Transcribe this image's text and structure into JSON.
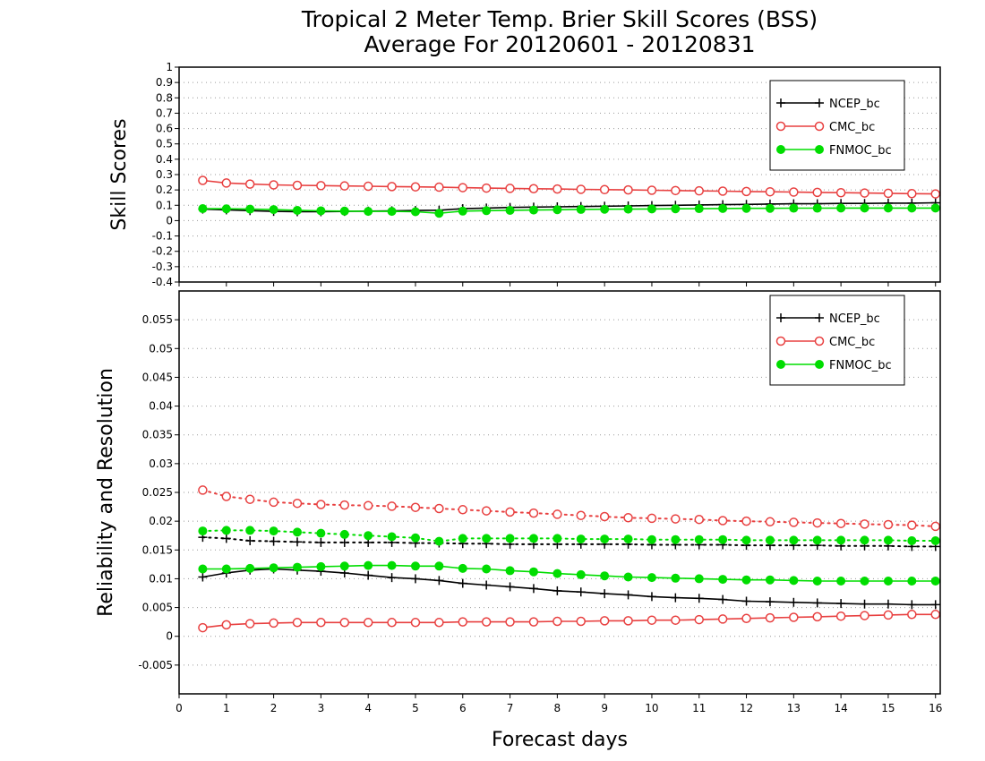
{
  "title_line1": "Tropical 2 Meter Temp. Brier Skill Scores (BSS)",
  "title_line2": "Average For 20120601 - 20120831",
  "xlabel": "Forecast days",
  "legend_labels": [
    "NCEP_bc",
    "CMC_bc",
    "FNMOC_bc"
  ],
  "colors": {
    "NCEP_bc": "#000000",
    "CMC_bc": "#e84040",
    "FNMOC_bc": "#00dd00"
  },
  "chart_data": [
    {
      "type": "line",
      "ylabel": "Skill Scores",
      "xlim": [
        0,
        16.1
      ],
      "ylim": [
        -0.4,
        1.0
      ],
      "xticks": [
        "0",
        "1",
        "2",
        "3",
        "4",
        "5",
        "6",
        "7",
        "8",
        "9",
        "10",
        "11",
        "12",
        "13",
        "14",
        "15",
        "16"
      ],
      "yticks": [
        "-0.4",
        "-0.3",
        "-0.2",
        "-0.1",
        "0",
        "0.1",
        "0.2",
        "0.3",
        "0.4",
        "0.5",
        "0.6",
        "0.7",
        "0.8",
        "0.9",
        "1"
      ],
      "grid": true,
      "legend_position": "top-right",
      "x": [
        0.5,
        1,
        1.5,
        2,
        2.5,
        3,
        3.5,
        4,
        4.5,
        5,
        5.5,
        6,
        6.5,
        7,
        7.5,
        8,
        8.5,
        9,
        9.5,
        10,
        10.5,
        11,
        11.5,
        12,
        12.5,
        13,
        13.5,
        14,
        14.5,
        15,
        15.5,
        16
      ],
      "series": [
        {
          "name": "NCEP_bc",
          "marker": "plus",
          "line": "solid",
          "values": [
            0.075,
            0.07,
            0.065,
            0.06,
            0.058,
            0.058,
            0.06,
            0.062,
            0.064,
            0.066,
            0.068,
            0.078,
            0.082,
            0.086,
            0.088,
            0.09,
            0.092,
            0.094,
            0.096,
            0.098,
            0.1,
            0.102,
            0.104,
            0.106,
            0.108,
            0.11,
            0.11,
            0.112,
            0.112,
            0.114,
            0.114,
            0.116
          ]
        },
        {
          "name": "CMC_bc",
          "marker": "open-circle",
          "line": "solid",
          "values": [
            0.262,
            0.245,
            0.238,
            0.233,
            0.23,
            0.228,
            0.226,
            0.224,
            0.222,
            0.22,
            0.218,
            0.215,
            0.212,
            0.21,
            0.208,
            0.206,
            0.204,
            0.202,
            0.2,
            0.198,
            0.196,
            0.194,
            0.192,
            0.19,
            0.188,
            0.186,
            0.184,
            0.182,
            0.18,
            0.178,
            0.176,
            0.174
          ]
        },
        {
          "name": "FNMOC_bc",
          "marker": "filled-circle",
          "line": "solid",
          "values": [
            0.078,
            0.077,
            0.075,
            0.072,
            0.067,
            0.064,
            0.062,
            0.06,
            0.06,
            0.058,
            0.048,
            0.062,
            0.065,
            0.067,
            0.069,
            0.071,
            0.073,
            0.074,
            0.075,
            0.076,
            0.077,
            0.078,
            0.079,
            0.08,
            0.08,
            0.081,
            0.081,
            0.082,
            0.082,
            0.082,
            0.082,
            0.082
          ]
        }
      ]
    },
    {
      "type": "line",
      "ylabel": "Reliability and Resolution",
      "xlim": [
        0,
        16.1
      ],
      "ylim": [
        -0.01,
        0.06
      ],
      "xticks": [
        "0",
        "1",
        "2",
        "3",
        "4",
        "5",
        "6",
        "7",
        "8",
        "9",
        "10",
        "11",
        "12",
        "13",
        "14",
        "15",
        "16"
      ],
      "yticks": [
        "-0.005",
        "0",
        "0.005",
        "0.01",
        "0.015",
        "0.02",
        "0.025",
        "0.03",
        "0.035",
        "0.04",
        "0.045",
        "0.05",
        "0.055"
      ],
      "grid": true,
      "legend_position": "top-right",
      "x": [
        0.5,
        1,
        1.5,
        2,
        2.5,
        3,
        3.5,
        4,
        4.5,
        5,
        5.5,
        6,
        6.5,
        7,
        7.5,
        8,
        8.5,
        9,
        9.5,
        10,
        10.5,
        11,
        11.5,
        12,
        12.5,
        13,
        13.5,
        14,
        14.5,
        15,
        15.5,
        16
      ],
      "series": [
        {
          "name": "NCEP_bc",
          "marker": "plus",
          "line": "dotted",
          "values": [
            0.0172,
            0.017,
            0.0166,
            0.0165,
            0.0164,
            0.0163,
            0.0163,
            0.0163,
            0.0163,
            0.0162,
            0.0162,
            0.0161,
            0.0161,
            0.016,
            0.016,
            0.016,
            0.016,
            0.016,
            0.016,
            0.0159,
            0.0159,
            0.0159,
            0.0159,
            0.0158,
            0.0158,
            0.0158,
            0.0158,
            0.0157,
            0.0157,
            0.0157,
            0.0156,
            0.0156
          ]
        },
        {
          "name": "NCEP_bc",
          "marker": "plus",
          "line": "solid",
          "values": [
            0.0103,
            0.011,
            0.0115,
            0.0117,
            0.0115,
            0.0113,
            0.011,
            0.0106,
            0.0102,
            0.01,
            0.0097,
            0.0092,
            0.0089,
            0.0086,
            0.0083,
            0.0079,
            0.0077,
            0.0074,
            0.0072,
            0.0069,
            0.0067,
            0.0066,
            0.0064,
            0.0061,
            0.006,
            0.0059,
            0.0058,
            0.0057,
            0.0056,
            0.0056,
            0.0055,
            0.0055
          ]
        },
        {
          "name": "CMC_bc",
          "marker": "open-circle",
          "line": "dotted",
          "values": [
            0.0254,
            0.0243,
            0.0238,
            0.0233,
            0.0231,
            0.0229,
            0.0228,
            0.0227,
            0.0226,
            0.0224,
            0.0222,
            0.022,
            0.0218,
            0.0216,
            0.0214,
            0.0212,
            0.021,
            0.0208,
            0.0206,
            0.0205,
            0.0204,
            0.0203,
            0.0201,
            0.02,
            0.0199,
            0.0198,
            0.0197,
            0.0196,
            0.0195,
            0.0194,
            0.0193,
            0.0191
          ]
        },
        {
          "name": "CMC_bc",
          "marker": "open-circle",
          "line": "solid",
          "values": [
            0.0015,
            0.002,
            0.0022,
            0.0023,
            0.0024,
            0.0024,
            0.0024,
            0.0024,
            0.0024,
            0.0024,
            0.0024,
            0.0025,
            0.0025,
            0.0025,
            0.0025,
            0.0026,
            0.0026,
            0.0027,
            0.0027,
            0.0028,
            0.0028,
            0.0029,
            0.003,
            0.0031,
            0.0032,
            0.0033,
            0.0034,
            0.0035,
            0.0036,
            0.0037,
            0.0038,
            0.0038
          ]
        },
        {
          "name": "FNMOC_bc",
          "marker": "filled-circle",
          "line": "dotted",
          "values": [
            0.0183,
            0.0184,
            0.0184,
            0.0183,
            0.0181,
            0.0179,
            0.0177,
            0.0175,
            0.0173,
            0.0171,
            0.0165,
            0.017,
            0.017,
            0.017,
            0.017,
            0.017,
            0.0169,
            0.0169,
            0.0169,
            0.0168,
            0.0168,
            0.0168,
            0.0168,
            0.0167,
            0.0167,
            0.0167,
            0.0167,
            0.0167,
            0.0167,
            0.0167,
            0.0166,
            0.0166
          ]
        },
        {
          "name": "FNMOC_bc",
          "marker": "filled-circle",
          "line": "solid",
          "values": [
            0.0117,
            0.0117,
            0.0118,
            0.0119,
            0.012,
            0.0121,
            0.0122,
            0.0123,
            0.0123,
            0.0122,
            0.0122,
            0.0118,
            0.0117,
            0.0114,
            0.0112,
            0.0109,
            0.0107,
            0.0105,
            0.0103,
            0.0102,
            0.0101,
            0.01,
            0.0099,
            0.0098,
            0.0098,
            0.0097,
            0.0096,
            0.0096,
            0.0096,
            0.0096,
            0.0096,
            0.0096
          ]
        }
      ]
    }
  ]
}
